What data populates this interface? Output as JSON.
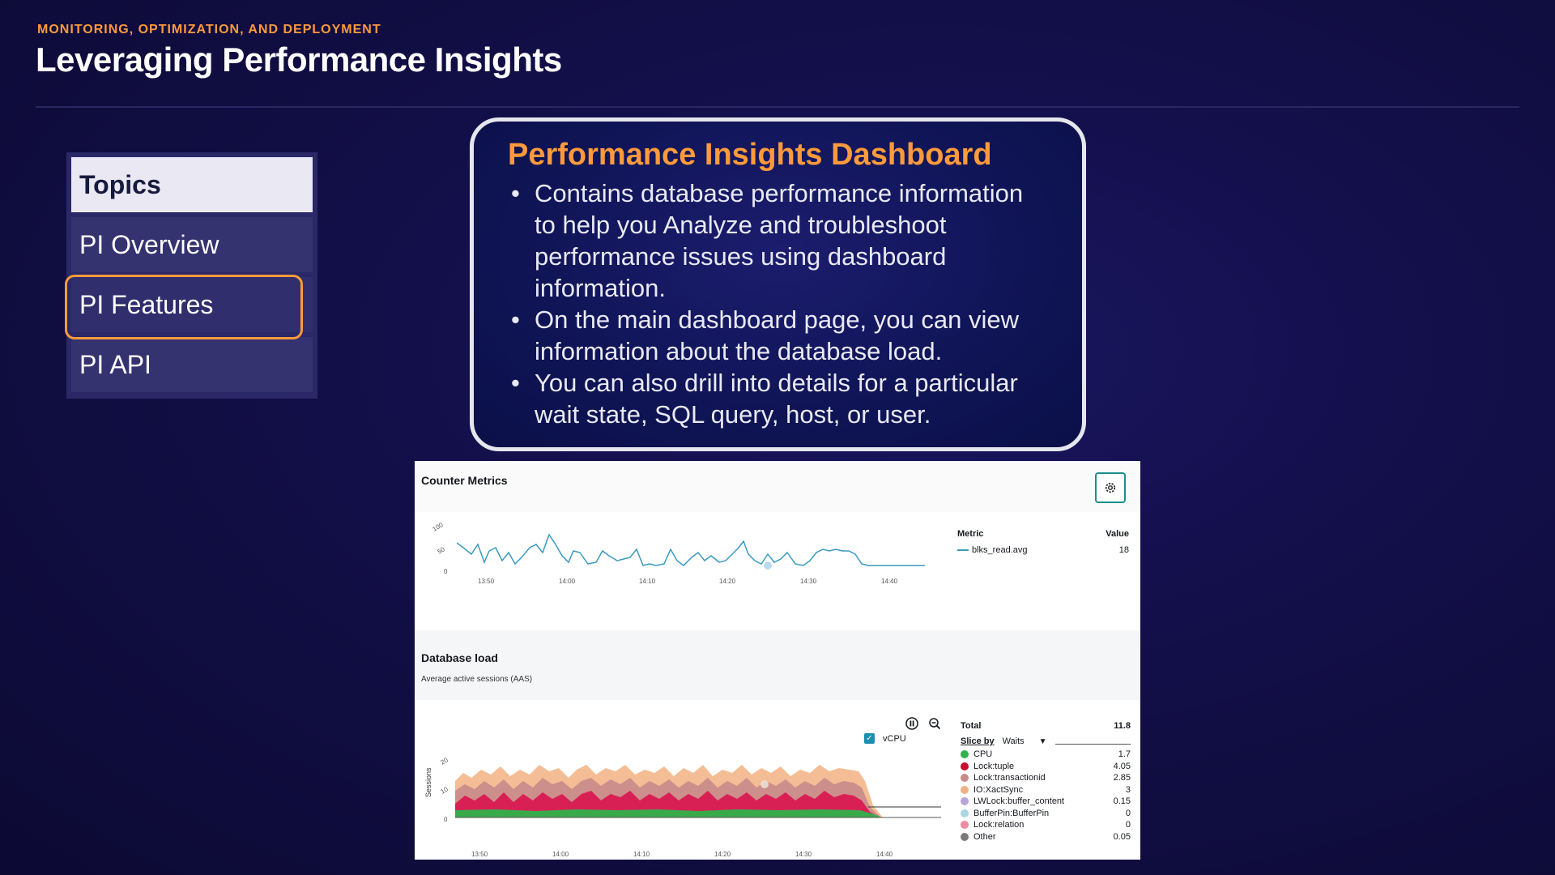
{
  "header": {
    "eyebrow": "MONITORING, OPTIMIZATION, AND DEPLOYMENT",
    "title": "Leveraging Performance Insights"
  },
  "topics": {
    "heading": "Topics",
    "items": [
      {
        "label": "PI Overview",
        "active": false
      },
      {
        "label": "PI Features",
        "active": true
      },
      {
        "label": "PI API",
        "active": false
      }
    ]
  },
  "card": {
    "title": "Performance Insights Dashboard",
    "bullets": [
      "Contains database performance information to help you Analyze and troubleshoot performance issues using dashboard information.",
      "On the main dashboard page, you can view information about the database load.",
      "You can also drill into details for a particular wait state, SQL query, host, or user."
    ]
  },
  "screenshot": {
    "counter_metrics": {
      "title": "Counter Metrics",
      "gear_icon": "gear-icon",
      "metric_header": "Metric",
      "value_header": "Value",
      "metric_name": "blks_read.avg",
      "metric_value": "18",
      "y_ticks": [
        "100",
        "50",
        "0"
      ],
      "x_ticks": [
        "13:50",
        "14:00",
        "14:10",
        "14:20",
        "14:30",
        "14:40"
      ]
    },
    "database_load": {
      "title": "Database load",
      "subtitle": "Average active sessions (AAS)",
      "y_label": "Sessions",
      "y_ticks": [
        "20",
        "10",
        "0"
      ],
      "x_ticks": [
        "13:50",
        "14:00",
        "14:10",
        "14:20",
        "14:30",
        "14:40"
      ],
      "vcpu_label": "vCPU",
      "total_label": "Total",
      "total_value": "11.8",
      "slice_by_label": "Slice by",
      "slice_by_value": "Waits",
      "legend": [
        {
          "name": "CPU",
          "value": "1.7",
          "color": "#2fb24a"
        },
        {
          "name": "Lock:tuple",
          "value": "4.05",
          "color": "#c8102e"
        },
        {
          "name": "Lock:transactionid",
          "value": "2.85",
          "color": "#c98a8a"
        },
        {
          "name": "IO:XactSync",
          "value": "3",
          "color": "#f2b183"
        },
        {
          "name": "LWLock:buffer_content",
          "value": "0.15",
          "color": "#b9a4d6"
        },
        {
          "name": "BufferPin:BufferPin",
          "value": "0",
          "color": "#a9d8e3"
        },
        {
          "name": "Lock:relation",
          "value": "0",
          "color": "#f08aa6"
        },
        {
          "name": "Other",
          "value": "0.05",
          "color": "#7a7a7a"
        }
      ]
    }
  },
  "colors": {
    "accent": "#ff9a3c",
    "background": "#130f4a",
    "metric_line": "#3a9ac0"
  }
}
